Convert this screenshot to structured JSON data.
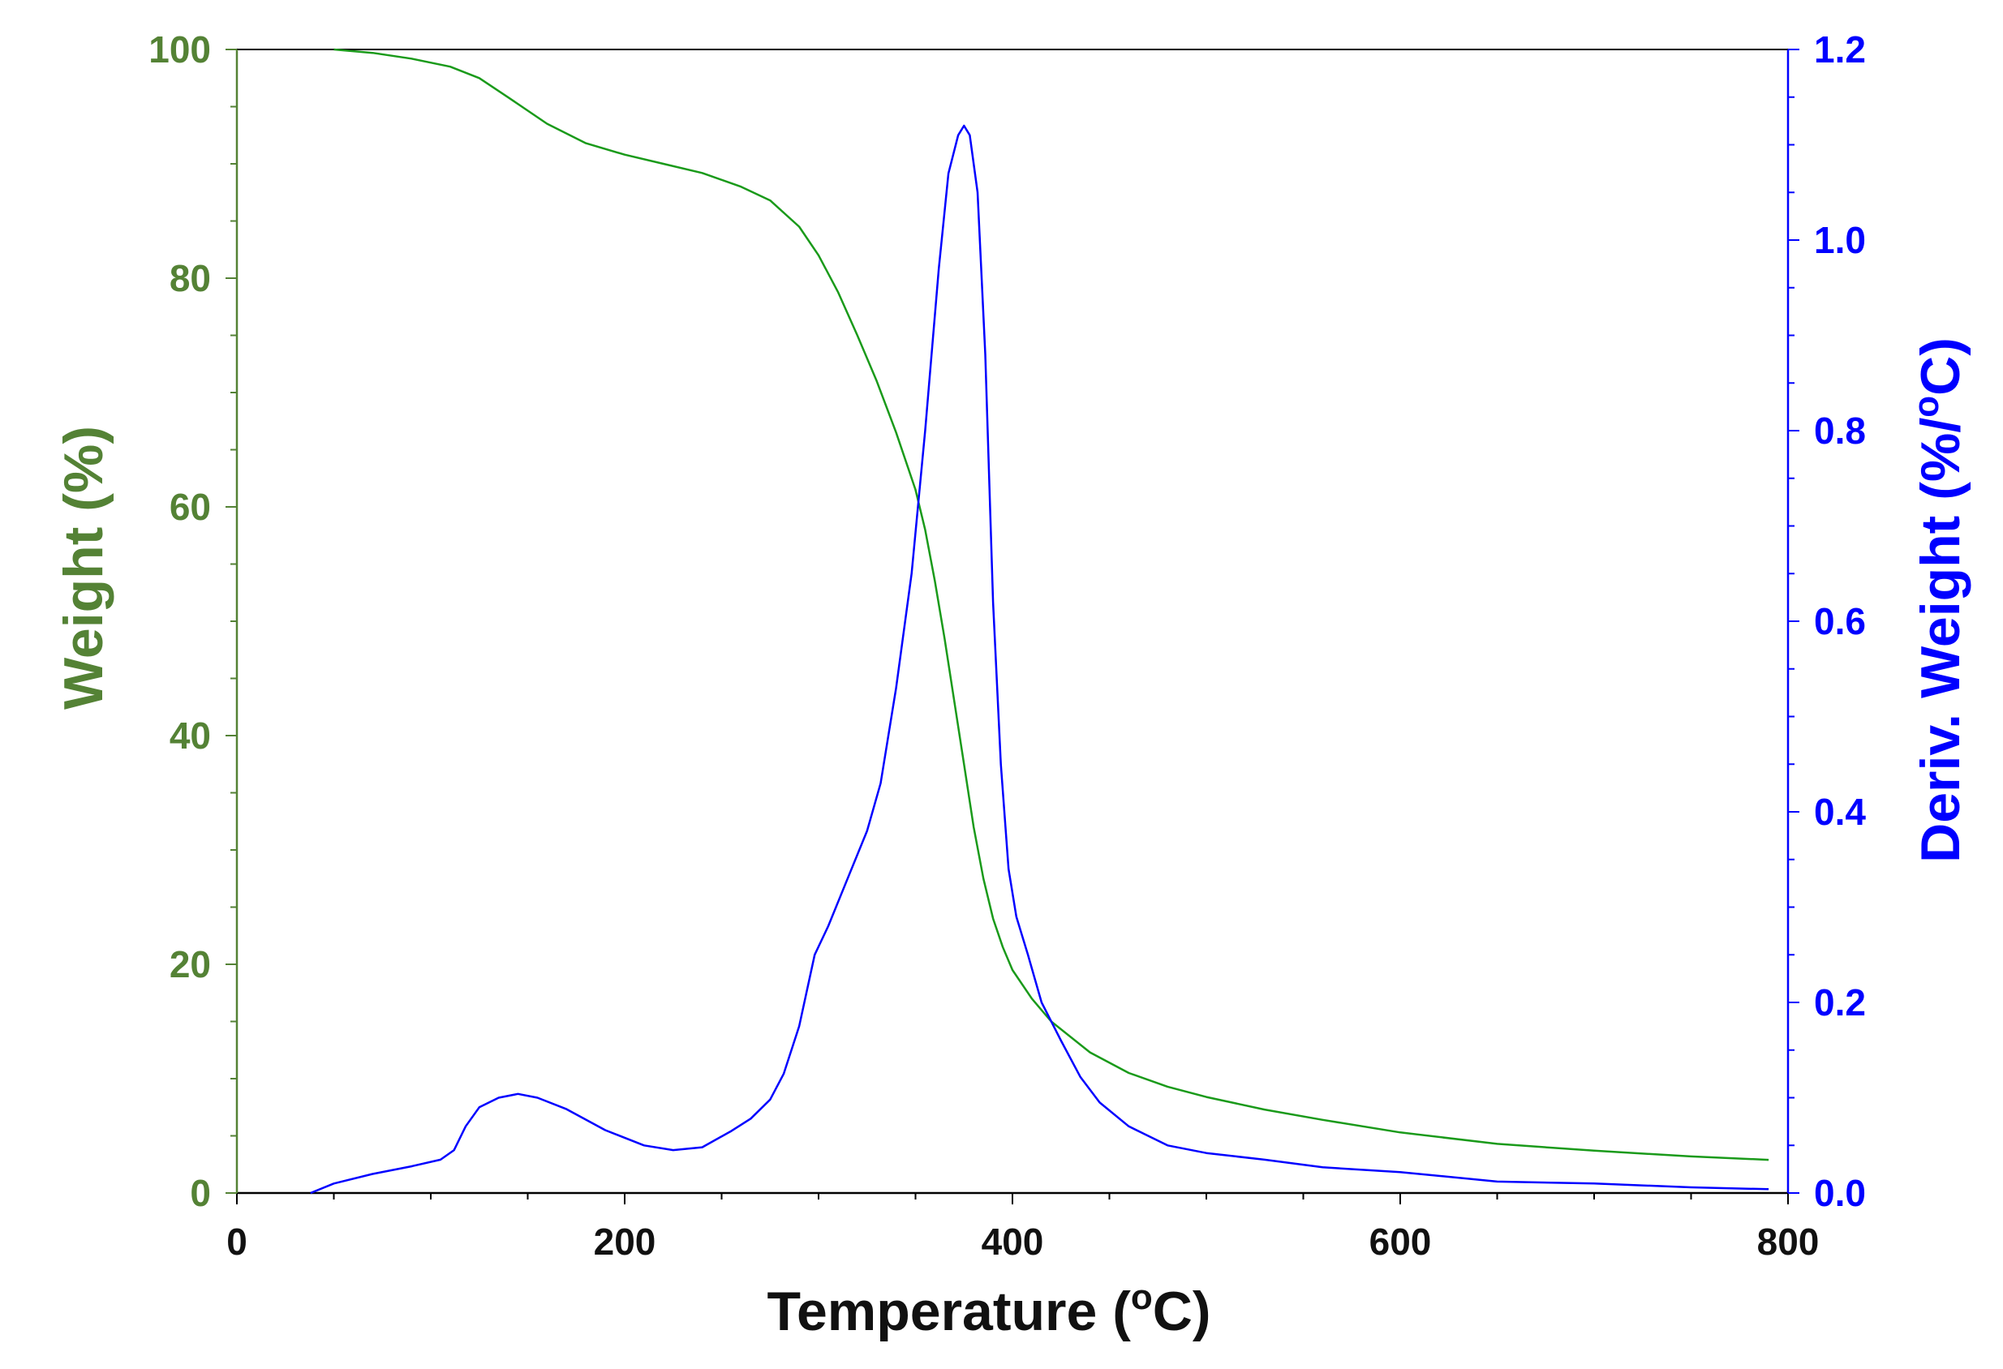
{
  "chart_data": {
    "type": "line",
    "title": "",
    "xlabel": {
      "main": "Temperature (",
      "sup": "o",
      "tail": "C)"
    },
    "ylabel_left": "Weight (%)",
    "ylabel_right": {
      "main": "Deriv. Weight (%/",
      "sup": "o",
      "tail": "C)"
    },
    "xlim": [
      0,
      800
    ],
    "ylim_left": [
      0,
      100
    ],
    "ylim_right": [
      0,
      1.2
    ],
    "x_ticks": [
      "0",
      "200",
      "400",
      "600",
      "800"
    ],
    "y_left_ticks": [
      "0",
      "20",
      "40",
      "60",
      "80",
      "100"
    ],
    "y_right_ticks": [
      "0.0",
      "0.2",
      "0.4",
      "0.6",
      "0.8",
      "1.0",
      "1.2"
    ],
    "grid": false,
    "colors": {
      "left_axis": "#548235",
      "right_axis": "#0000ff",
      "weight_line": "#1a9a1a",
      "deriv_line": "#0000ff",
      "frame": "#000000"
    },
    "series": [
      {
        "axis": "left",
        "x": [
          50,
          70,
          90,
          110,
          125,
          140,
          160,
          180,
          200,
          220,
          240,
          260,
          275,
          290,
          300,
          310,
          320,
          330,
          340,
          350,
          355,
          360,
          365,
          370,
          375,
          380,
          385,
          390,
          395,
          400,
          410,
          420,
          440,
          460,
          480,
          500,
          530,
          560,
          600,
          650,
          700,
          750,
          790
        ],
        "y": [
          100,
          99.7,
          99.2,
          98.5,
          97.5,
          95.8,
          93.5,
          91.8,
          90.8,
          90,
          89.2,
          88,
          86.8,
          84.5,
          82,
          78.8,
          75,
          71,
          66.5,
          61.5,
          58,
          53.5,
          48.5,
          43,
          37.5,
          32,
          27.5,
          24,
          21.5,
          19.5,
          17,
          15,
          12.3,
          10.5,
          9.3,
          8.4,
          7.3,
          6.4,
          5.3,
          4.3,
          3.7,
          3.2,
          2.9
        ]
      },
      {
        "axis": "right",
        "x": [
          38,
          50,
          70,
          90,
          105,
          112,
          118,
          125,
          135,
          145,
          155,
          170,
          190,
          210,
          225,
          240,
          255,
          265,
          275,
          282,
          290,
          298,
          305,
          315,
          325,
          332,
          340,
          348,
          355,
          362,
          367,
          372,
          375,
          378,
          382,
          386,
          390,
          394,
          398,
          402,
          408,
          415,
          425,
          435,
          445,
          460,
          480,
          500,
          530,
          560,
          600,
          650,
          700,
          750,
          790
        ],
        "y": [
          0.0,
          0.01,
          0.02,
          0.028,
          0.035,
          0.045,
          0.07,
          0.09,
          0.1,
          0.104,
          0.1,
          0.088,
          0.066,
          0.05,
          0.045,
          0.048,
          0.065,
          0.078,
          0.098,
          0.125,
          0.175,
          0.25,
          0.28,
          0.33,
          0.38,
          0.43,
          0.53,
          0.65,
          0.8,
          0.97,
          1.07,
          1.11,
          1.12,
          1.11,
          1.05,
          0.88,
          0.62,
          0.45,
          0.34,
          0.29,
          0.25,
          0.2,
          0.16,
          0.122,
          0.095,
          0.07,
          0.05,
          0.042,
          0.035,
          0.027,
          0.022,
          0.012,
          0.01,
          0.006,
          0.004
        ]
      }
    ]
  }
}
